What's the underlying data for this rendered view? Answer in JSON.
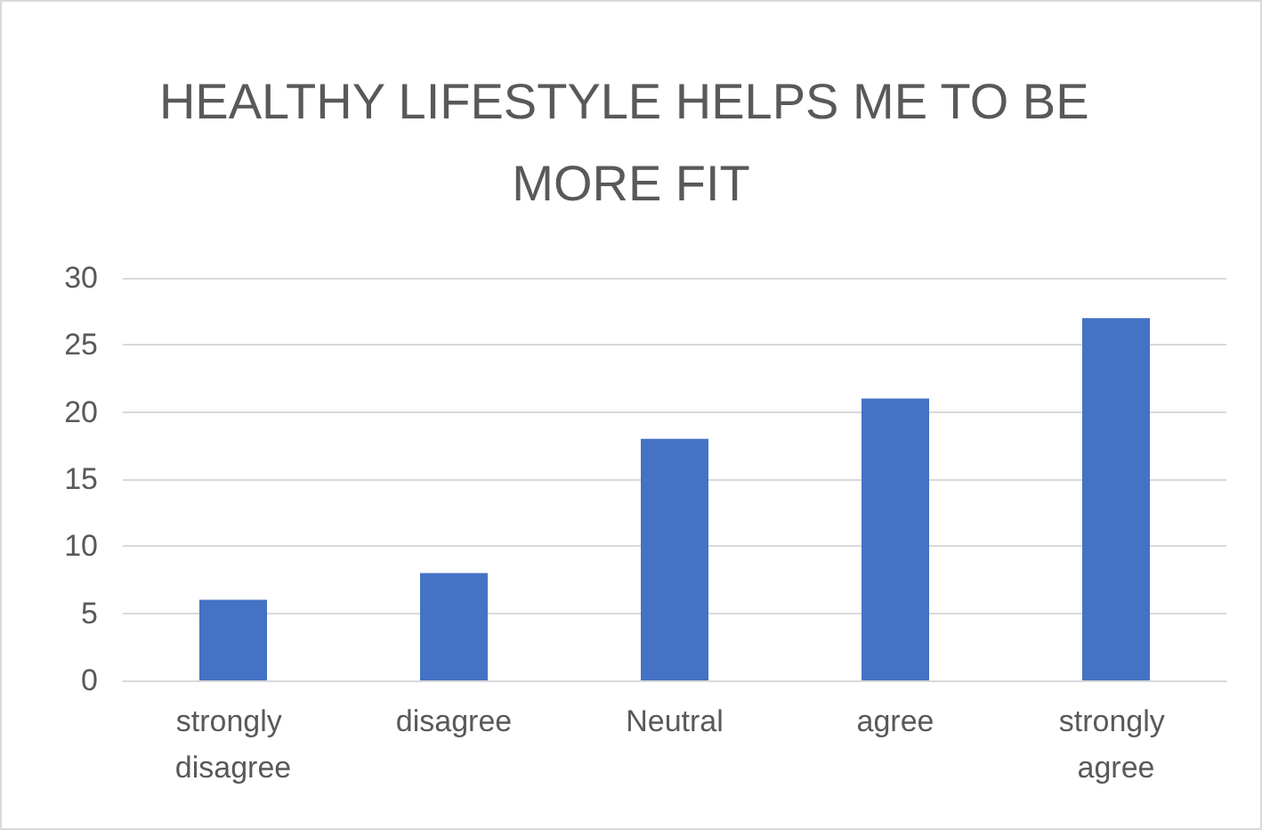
{
  "chart_data": {
    "type": "bar",
    "title": "HEALTHY LIFESTYLE HELPS ME TO BE MORE FIT",
    "categories": [
      "strongly disagree",
      "disagree",
      "Neutral",
      "agree",
      "strongly agree"
    ],
    "values": [
      6,
      8,
      18,
      21,
      27
    ],
    "color": "#4472c4",
    "ylim": [
      0,
      30
    ],
    "yticks": [
      0,
      5,
      10,
      15,
      20,
      25,
      30
    ],
    "grid": "y"
  }
}
